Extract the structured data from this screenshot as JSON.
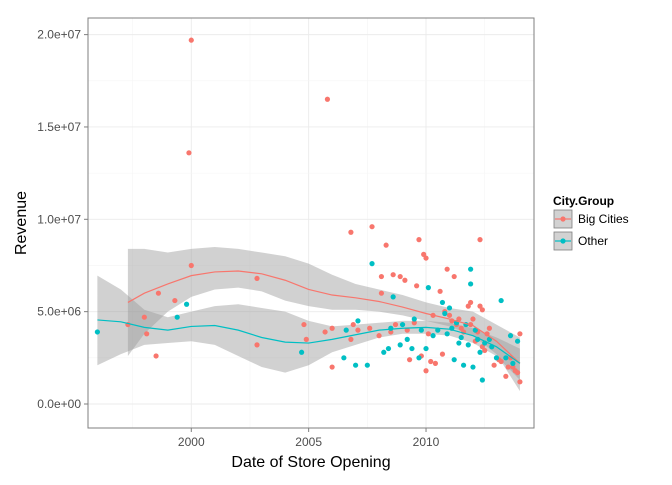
{
  "chart_data": {
    "type": "scatter",
    "title": "",
    "xlabel": "Date of Store Opening",
    "ylabel": "Revenue",
    "xlim": [
      1995.6,
      2014.6
    ],
    "ylim": [
      -1300000,
      20900000
    ],
    "x_ticks": [
      2000,
      2005,
      2010
    ],
    "x_tick_labels": [
      "2000",
      "2005",
      "2010"
    ],
    "y_ticks": [
      0,
      5000000,
      10000000,
      15000000,
      20000000
    ],
    "y_tick_labels": [
      "0.0e+00",
      "5.0e+06",
      "1.0e+07",
      "1.5e+07",
      "2.0e+07"
    ],
    "grid": true,
    "legend": {
      "title": "City.Group",
      "position": "right",
      "entries": [
        "Big Cities",
        "Other"
      ]
    },
    "colors": {
      "Big Cities": "#f8766d",
      "Other": "#00bfc4",
      "band": "#999999"
    },
    "series": [
      {
        "name": "Big Cities",
        "color": "#f8766d",
        "points": [
          [
            1997.3,
            4300000
          ],
          [
            1998.0,
            4700000
          ],
          [
            1998.1,
            3800000
          ],
          [
            1998.5,
            2600000
          ],
          [
            1998.6,
            6000000
          ],
          [
            1999.3,
            5600000
          ],
          [
            2000.0,
            19700000
          ],
          [
            1999.9,
            13600000
          ],
          [
            2000.0,
            7500000
          ],
          [
            2002.8,
            6800000
          ],
          [
            2002.8,
            3200000
          ],
          [
            2004.8,
            4300000
          ],
          [
            2004.9,
            3500000
          ],
          [
            2005.7,
            3900000
          ],
          [
            2005.8,
            16500000
          ],
          [
            2006.0,
            4100000
          ],
          [
            2006.0,
            2000000
          ],
          [
            2006.8,
            9300000
          ],
          [
            2006.8,
            3500000
          ],
          [
            2006.9,
            4300000
          ],
          [
            2007.1,
            4000000
          ],
          [
            2007.6,
            4100000
          ],
          [
            2007.7,
            9600000
          ],
          [
            2008.0,
            3700000
          ],
          [
            2008.1,
            6000000
          ],
          [
            2008.1,
            6900000
          ],
          [
            2008.3,
            8600000
          ],
          [
            2008.5,
            3900000
          ],
          [
            2008.6,
            7000000
          ],
          [
            2008.7,
            4300000
          ],
          [
            2008.9,
            6900000
          ],
          [
            2009.1,
            6700000
          ],
          [
            2009.2,
            4000000
          ],
          [
            2009.3,
            2400000
          ],
          [
            2009.5,
            4400000
          ],
          [
            2009.6,
            6400000
          ],
          [
            2009.7,
            8900000
          ],
          [
            2009.8,
            2600000
          ],
          [
            2009.9,
            8100000
          ],
          [
            2010.0,
            7900000
          ],
          [
            2010.0,
            1800000
          ],
          [
            2010.1,
            3800000
          ],
          [
            2010.2,
            2300000
          ],
          [
            2010.3,
            4800000
          ],
          [
            2010.4,
            2200000
          ],
          [
            2010.6,
            6100000
          ],
          [
            2010.7,
            2700000
          ],
          [
            2010.8,
            5000000
          ],
          [
            2010.9,
            7300000
          ],
          [
            2011.0,
            4800000
          ],
          [
            2011.1,
            4500000
          ],
          [
            2011.2,
            6900000
          ],
          [
            2011.3,
            4300000
          ],
          [
            2011.4,
            4600000
          ],
          [
            2011.5,
            4100000
          ],
          [
            2011.6,
            3900000
          ],
          [
            2011.8,
            5300000
          ],
          [
            2011.9,
            4300000
          ],
          [
            2011.9,
            5500000
          ],
          [
            2012.0,
            4600000
          ],
          [
            2012.1,
            3400000
          ],
          [
            2012.2,
            3900000
          ],
          [
            2012.3,
            8900000
          ],
          [
            2012.3,
            5300000
          ],
          [
            2012.4,
            5100000
          ],
          [
            2012.4,
            3100000
          ],
          [
            2012.5,
            2900000
          ],
          [
            2012.6,
            3800000
          ],
          [
            2012.7,
            4100000
          ],
          [
            2012.9,
            2100000
          ],
          [
            2013.1,
            2400000
          ],
          [
            2013.2,
            2300000
          ],
          [
            2013.4,
            1500000
          ],
          [
            2013.5,
            2000000
          ],
          [
            2013.6,
            2500000
          ],
          [
            2013.7,
            2000000
          ],
          [
            2013.8,
            1800000
          ],
          [
            2013.9,
            1700000
          ],
          [
            2014.0,
            3800000
          ],
          [
            2014.0,
            1200000
          ]
        ]
      },
      {
        "name": "Other",
        "color": "#00bfc4",
        "points": [
          [
            1996.0,
            3900000
          ],
          [
            1999.4,
            4700000
          ],
          [
            1999.8,
            5400000
          ],
          [
            2004.7,
            2800000
          ],
          [
            2006.5,
            2500000
          ],
          [
            2006.6,
            4000000
          ],
          [
            2007.0,
            2100000
          ],
          [
            2007.1,
            4500000
          ],
          [
            2007.5,
            2100000
          ],
          [
            2007.7,
            7600000
          ],
          [
            2008.2,
            2800000
          ],
          [
            2008.4,
            3000000
          ],
          [
            2008.5,
            4100000
          ],
          [
            2008.6,
            5800000
          ],
          [
            2008.9,
            3200000
          ],
          [
            2009.0,
            4300000
          ],
          [
            2009.2,
            3500000
          ],
          [
            2009.4,
            3000000
          ],
          [
            2009.5,
            4600000
          ],
          [
            2009.7,
            2500000
          ],
          [
            2009.8,
            4000000
          ],
          [
            2010.0,
            3000000
          ],
          [
            2010.1,
            6300000
          ],
          [
            2010.3,
            3700000
          ],
          [
            2010.5,
            4000000
          ],
          [
            2010.7,
            5500000
          ],
          [
            2010.8,
            4900000
          ],
          [
            2010.9,
            3800000
          ],
          [
            2011.0,
            5200000
          ],
          [
            2011.1,
            4100000
          ],
          [
            2011.2,
            2400000
          ],
          [
            2011.3,
            4400000
          ],
          [
            2011.4,
            3300000
          ],
          [
            2011.5,
            3600000
          ],
          [
            2011.6,
            2100000
          ],
          [
            2011.7,
            4300000
          ],
          [
            2011.8,
            3200000
          ],
          [
            2011.9,
            6500000
          ],
          [
            2011.9,
            7300000
          ],
          [
            2012.0,
            2000000
          ],
          [
            2012.1,
            4000000
          ],
          [
            2012.2,
            3500000
          ],
          [
            2012.3,
            2800000
          ],
          [
            2012.4,
            1300000
          ],
          [
            2012.5,
            3300000
          ],
          [
            2012.7,
            3500000
          ],
          [
            2012.8,
            3100000
          ],
          [
            2013.0,
            2500000
          ],
          [
            2013.2,
            5600000
          ],
          [
            2013.4,
            2500000
          ],
          [
            2013.6,
            3700000
          ],
          [
            2013.7,
            2200000
          ],
          [
            2013.9,
            3400000
          ]
        ]
      }
    ],
    "smooth": [
      {
        "name": "Big Cities",
        "color": "#f8766d",
        "x": [
          1997.3,
          1998.0,
          1999.0,
          2000.0,
          2001.0,
          2002.0,
          2003.0,
          2004.0,
          2005.0,
          2006.0,
          2007.0,
          2008.0,
          2009.0,
          2010.0,
          2011.0,
          2012.0,
          2013.0,
          2014.0
        ],
        "y": [
          5500000,
          6000000,
          6500000,
          6950000,
          7150000,
          7200000,
          7050000,
          6700000,
          6200000,
          5900000,
          5750000,
          5550000,
          5250000,
          4900000,
          4600000,
          4250000,
          3400000,
          2200000
        ],
        "lower": [
          2600000,
          3800000,
          5000000,
          5800000,
          6200000,
          6300000,
          6100000,
          5600000,
          5300000,
          5100000,
          5100000,
          5000000,
          4800000,
          4500000,
          4200000,
          3700000,
          2700000,
          700000
        ],
        "upper": [
          8400000,
          8400000,
          8200000,
          8400000,
          8500000,
          8400000,
          8200000,
          8000000,
          7600000,
          7000000,
          6500000,
          6200000,
          5900000,
          5500000,
          5200000,
          5000000,
          4300000,
          3600000
        ]
      },
      {
        "name": "Other",
        "color": "#00bfc4",
        "x": [
          1996.0,
          1997.0,
          1998.0,
          1999.0,
          2000.0,
          2001.0,
          2002.0,
          2003.0,
          2004.0,
          2005.0,
          2006.0,
          2007.0,
          2008.0,
          2009.0,
          2010.0,
          2011.0,
          2012.0,
          2013.0,
          2014.0
        ],
        "y": [
          4550000,
          4450000,
          4150000,
          4000000,
          4200000,
          4250000,
          4000000,
          3600000,
          3350000,
          3300000,
          3500000,
          3750000,
          4000000,
          4100000,
          4150000,
          4050000,
          3700000,
          3100000,
          2200000
        ],
        "lower": [
          2100000,
          2700000,
          3200000,
          3300000,
          3400000,
          3200000,
          2600000,
          2000000,
          1700000,
          2100000,
          2800000,
          3200000,
          3600000,
          3800000,
          3800000,
          3700000,
          3300000,
          2600000,
          1300000
        ],
        "upper": [
          6950000,
          6200000,
          5100000,
          4700000,
          5000000,
          5300000,
          5400000,
          5200000,
          5000000,
          4500000,
          4200000,
          4300000,
          4400000,
          4500000,
          4500000,
          4400000,
          4100000,
          3600000,
          3000000
        ]
      }
    ]
  }
}
